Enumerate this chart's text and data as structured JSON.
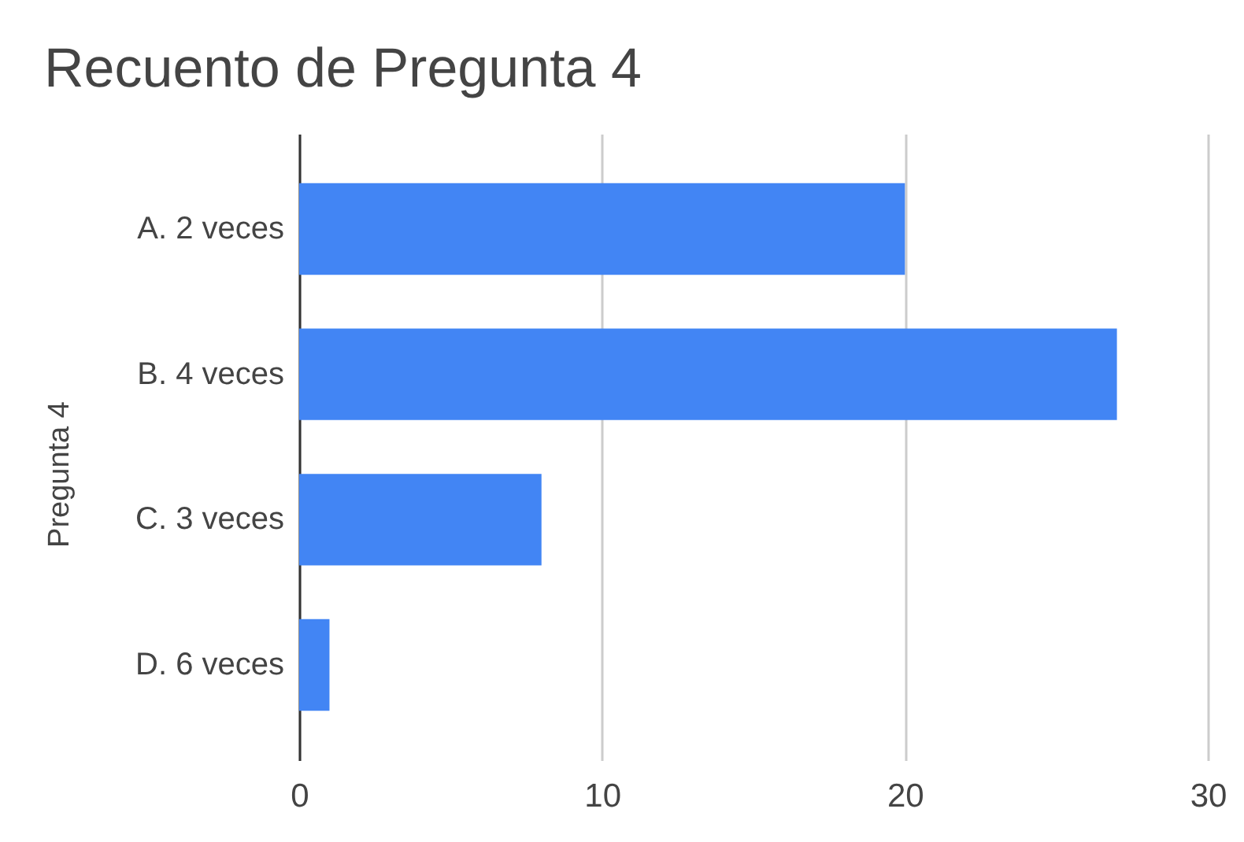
{
  "chart_data": {
    "type": "bar",
    "orientation": "horizontal",
    "title": "Recuento de Pregunta 4",
    "ylabel": "Pregunta 4",
    "categories": [
      "A. 2 veces",
      "B. 4 veces",
      "C. 3 veces",
      "D. 6 veces"
    ],
    "values": [
      20,
      27,
      8,
      1
    ],
    "color": "#4285f4",
    "xlim": [
      0,
      30
    ],
    "xticks": [
      0,
      10,
      20,
      30
    ],
    "grid": "x"
  }
}
